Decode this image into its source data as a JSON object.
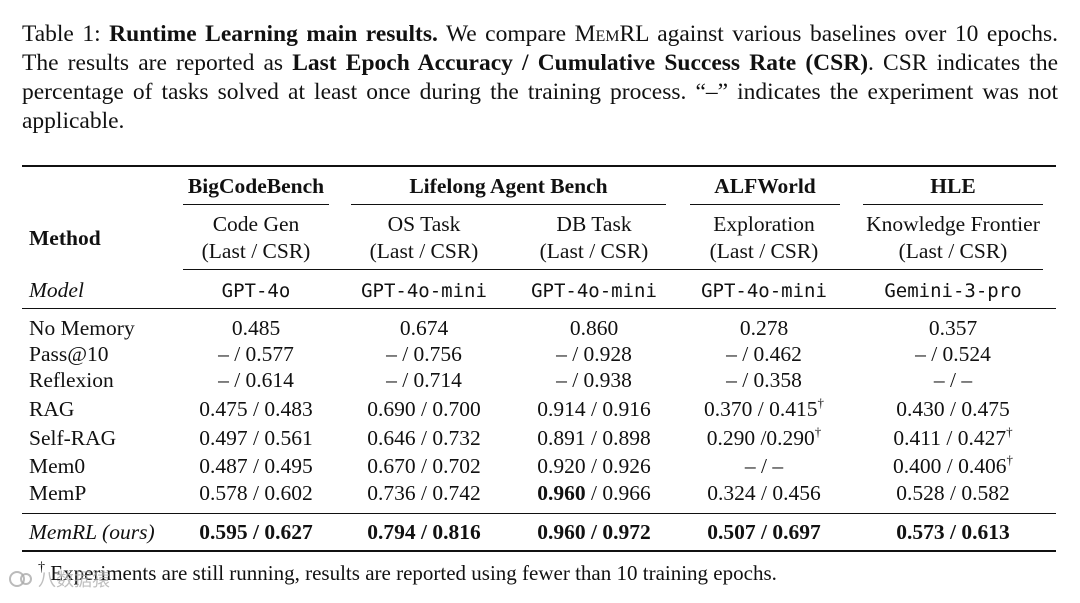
{
  "caption": {
    "label": "Table 1:",
    "title": "Runtime Learning main results.",
    "text1": "We compare",
    "system_m": "M",
    "system_rest": "em",
    "system_rl": "RL",
    "text2": "against various baselines over 10 epochs. The results are reported as",
    "metric": "Last Epoch Accuracy / Cumulative Success Rate (CSR)",
    "text3": ". CSR indicates the percentage of tasks solved at least once during the training process. “–” indicates the experiment was not applicable."
  },
  "header": {
    "method": "Method",
    "groups": [
      "BigCodeBench",
      "Lifelong Agent Bench",
      "ALFWorld",
      "HLE"
    ],
    "subtasks": [
      "Code Gen",
      "OS Task",
      "DB Task",
      "Exploration",
      "Knowledge Frontier"
    ],
    "metric_label": "(Last / CSR)"
  },
  "model_row": {
    "label": "Model",
    "models": [
      "GPT-4o",
      "GPT-4o-mini",
      "GPT-4o-mini",
      "GPT-4o-mini",
      "Gemini-3-pro"
    ]
  },
  "rows": [
    {
      "method": "No Memory",
      "cells": [
        "0.485",
        "0.674",
        "0.860",
        "0.278",
        "0.357"
      ]
    },
    {
      "method": "Pass@10",
      "cells": [
        "– / 0.577",
        "– / 0.756",
        "– / 0.928",
        "– / 0.462",
        "– / 0.524"
      ]
    },
    {
      "method": "Reflexion",
      "cells": [
        "– / 0.614",
        "– / 0.714",
        "– / 0.938",
        "– / 0.358",
        "– / –"
      ]
    },
    {
      "method": "RAG",
      "cells": [
        "0.475 / 0.483",
        "0.690 / 0.700",
        "0.914 / 0.916",
        "0.370 / 0.415",
        "0.430 / 0.475"
      ]
    },
    {
      "method": "Self-RAG",
      "cells": [
        "0.497 / 0.561",
        "0.646 / 0.732",
        "0.891 / 0.898",
        "0.290 /0.290",
        "0.411 / 0.427"
      ]
    },
    {
      "method": "Mem0",
      "cells": [
        "0.487 / 0.495",
        "0.670 / 0.702",
        "0.920 / 0.926",
        "– / –",
        "0.400 / 0.406"
      ]
    },
    {
      "method": "MemP",
      "cells": [
        "0.578 / 0.602",
        "0.736 / 0.742",
        "0.960",
        "0.324 / 0.456",
        "0.528 / 0.582"
      ],
      "db_rest": " / 0.966"
    }
  ],
  "ours": {
    "method": "MemRL (ours)",
    "cells": [
      "0.595 / 0.627",
      "0.794 / 0.816",
      "0.960 / 0.972",
      "0.507 / 0.697",
      "0.573 / 0.613"
    ]
  },
  "dagger": "†",
  "footnote": "Experiments are still running, results are reported using fewer than 10 training epochs.",
  "watermark": "八数据猿"
}
